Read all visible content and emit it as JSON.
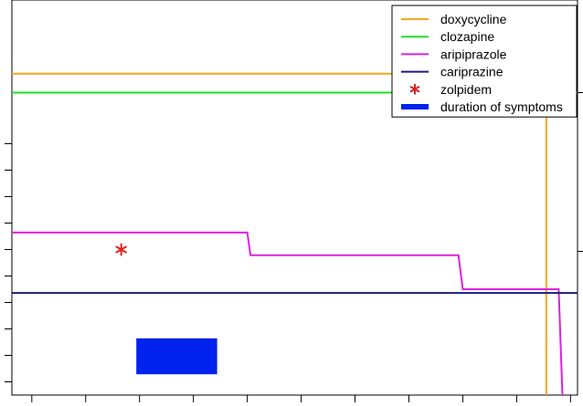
{
  "chart_data": {
    "type": "line",
    "title": "",
    "xlabel": "",
    "ylabel": "",
    "xlim": [
      0,
      10.5
    ],
    "ylim": [
      0,
      10.45
    ],
    "x_tick_count": 11,
    "y_tick_count": 10,
    "tick_labels_visible": false,
    "grid": false,
    "legend_position": "top-right",
    "series": [
      {
        "name": "doxycycline",
        "color": "#f5a623",
        "kind": "line",
        "points": [
          [
            0,
            8.5
          ],
          [
            9.92,
            8.5
          ],
          [
            9.92,
            0
          ]
        ]
      },
      {
        "name": "clozapine",
        "color": "#22dd22",
        "kind": "line",
        "points": [
          [
            0,
            8.0
          ],
          [
            10.5,
            8.0
          ]
        ]
      },
      {
        "name": "aripiprazole",
        "color": "#dd22dd",
        "kind": "line",
        "points": [
          [
            0,
            4.3
          ],
          [
            4.37,
            4.3
          ],
          [
            4.43,
            3.7
          ],
          [
            8.29,
            3.7
          ],
          [
            8.37,
            2.8
          ],
          [
            10.15,
            2.8
          ],
          [
            10.22,
            0
          ]
        ]
      },
      {
        "name": "cariprazine",
        "color": "#1a1a80",
        "kind": "line",
        "points": [
          [
            0,
            2.7
          ],
          [
            10.5,
            2.7
          ]
        ]
      },
      {
        "name": "zolpidem",
        "color": "#dd2222",
        "kind": "marker",
        "marker": "*",
        "points": [
          [
            2.03,
            3.85
          ]
        ]
      },
      {
        "name": "duration of symptoms",
        "color": "#0022ee",
        "kind": "bar",
        "x_range": [
          2.31,
          3.81
        ],
        "y_range": [
          0.55,
          1.5
        ]
      }
    ]
  }
}
